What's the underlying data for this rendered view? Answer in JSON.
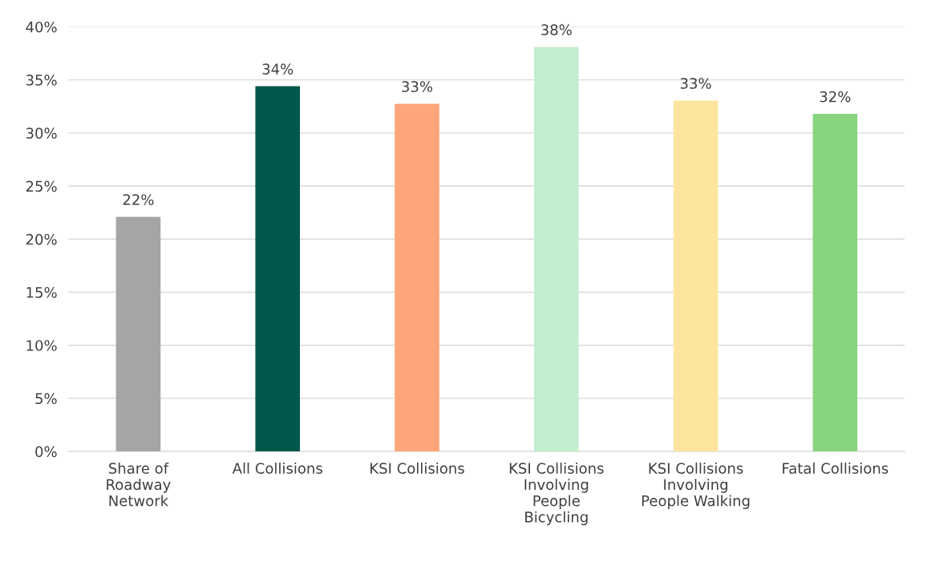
{
  "chart_data": {
    "type": "bar",
    "categories": [
      "Share of\nRoadway\nNetwork",
      "All Collisions",
      "KSI Collisions",
      "KSI Collisions\nInvolving\nPeople\nBicycling",
      "KSI Collisions\nInvolving\nPeople Walking",
      "Fatal Collisions"
    ],
    "values": [
      22.1,
      34.4,
      32.75,
      38.1,
      33.05,
      31.8
    ],
    "colors": [
      "#a5a5a5",
      "#00584a",
      "#ffa57a",
      "#c3edcf",
      "#fde59e",
      "#88d47f"
    ],
    "value_labels": [
      "22%",
      "34%",
      "33%",
      "38%",
      "33%",
      "32%"
    ],
    "ylim": [
      0,
      40
    ],
    "yticks": [
      {
        "value": 0,
        "label": "0%"
      },
      {
        "value": 5,
        "label": "5%"
      },
      {
        "value": 10,
        "label": "10%"
      },
      {
        "value": 15,
        "label": "15%"
      },
      {
        "value": 20,
        "label": "20%"
      },
      {
        "value": 25,
        "label": "25%"
      },
      {
        "value": 30,
        "label": "30%"
      },
      {
        "value": 35,
        "label": "35%"
      },
      {
        "value": 40,
        "label": "40%"
      }
    ],
    "grid": "y"
  }
}
